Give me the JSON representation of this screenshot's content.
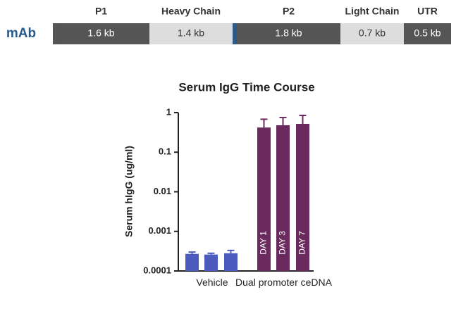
{
  "construct": {
    "label": "mAb",
    "segments": [
      {
        "name": "P1",
        "size": "1.6 kb"
      },
      {
        "name": "Heavy Chain",
        "size": "1.4 kb"
      },
      {
        "name": "P2",
        "size": "1.8 kb"
      },
      {
        "name": "Light Chain",
        "size": "0.7 kb"
      },
      {
        "name": "UTR",
        "size": "0.5 kb"
      }
    ]
  },
  "chart_data": {
    "type": "bar",
    "title": "Serum IgG Time Course",
    "y_label": "Serum  hIgG (ug/ml)",
    "yscale": "log",
    "ylim": [
      0.0001,
      1
    ],
    "yticks": [
      0.0001,
      0.001,
      0.01,
      0.1,
      1
    ],
    "groups": [
      {
        "name": "Vehicle",
        "color": "#4a5bbd",
        "values": [
          0.00027,
          0.00026,
          0.00028
        ],
        "errors": [
          3e-05,
          2e-05,
          5e-05
        ]
      },
      {
        "name": "Dual promoter ceDNA",
        "color": "#6b2a5e",
        "values": [
          0.42,
          0.48,
          0.52
        ],
        "errors": [
          0.26,
          0.27,
          0.33
        ],
        "bar_labels": [
          "DAY 1",
          "DAY 3",
          "DAY 7"
        ]
      }
    ]
  }
}
